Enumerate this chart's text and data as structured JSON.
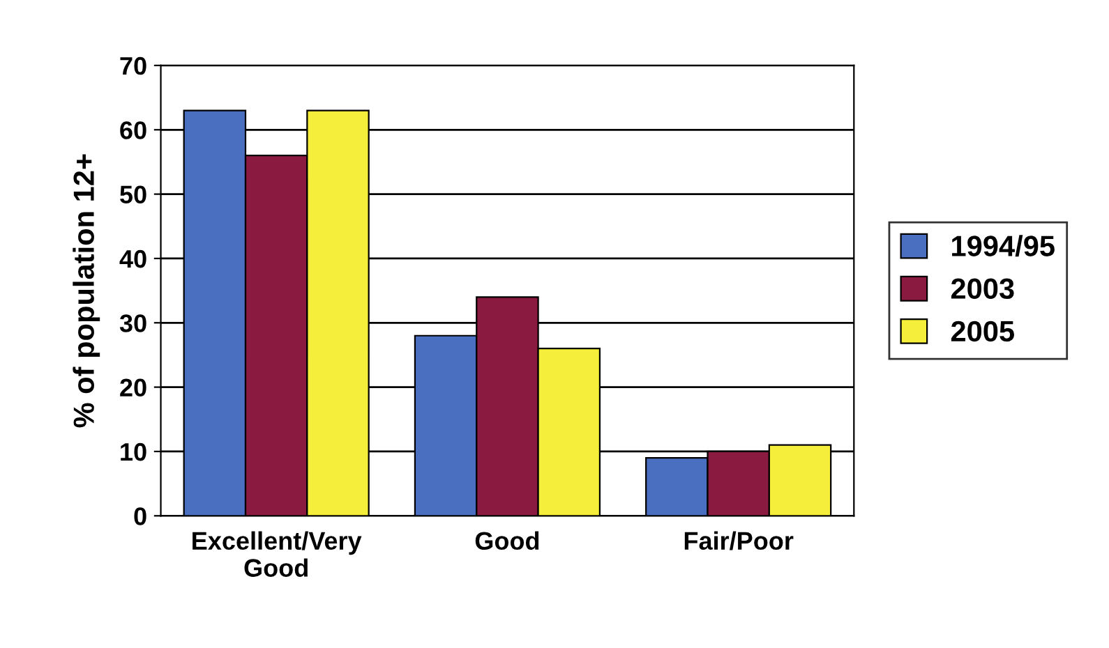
{
  "chart_data": {
    "type": "bar",
    "ylabel": "% of population 12+",
    "categories": [
      "Excellent/Very\nGood",
      "Good",
      "Fair/Poor"
    ],
    "series": [
      {
        "name": "1994/95",
        "color": "#4a6fc0",
        "values": [
          63,
          28,
          9
        ]
      },
      {
        "name": "2003",
        "color": "#8b1a40",
        "values": [
          56,
          34,
          10
        ]
      },
      {
        "name": "2005",
        "color": "#f5ee3a",
        "values": [
          63,
          26,
          11
        ]
      }
    ],
    "ylim": [
      0,
      70
    ],
    "yticks": [
      0,
      10,
      20,
      30,
      40,
      50,
      60,
      70
    ],
    "grid": "y",
    "legend": "right"
  }
}
